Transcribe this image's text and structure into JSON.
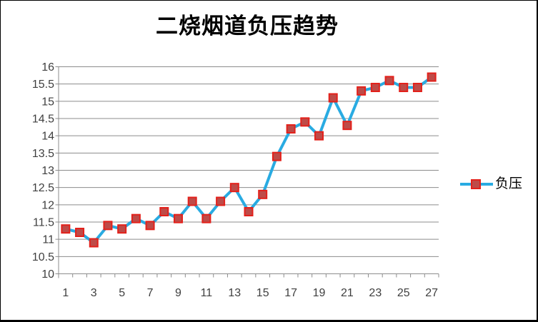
{
  "window": {
    "background": "#FFFFFF",
    "border_color": "#000000"
  },
  "chart_data": {
    "type": "line",
    "title": "二烧烟道负压趋势",
    "categories": [
      "1",
      "2",
      "3",
      "4",
      "5",
      "6",
      "7",
      "8",
      "9",
      "10",
      "11",
      "12",
      "13",
      "14",
      "15",
      "16",
      "17",
      "18",
      "19",
      "20",
      "21",
      "22",
      "23",
      "24",
      "25",
      "26",
      "27"
    ],
    "x_tick_labels_shown": [
      "1",
      "3",
      "5",
      "7",
      "9",
      "11",
      "13",
      "15",
      "17",
      "19",
      "21",
      "23",
      "25",
      "27"
    ],
    "series": [
      {
        "name": "负压",
        "values": [
          11.3,
          11.2,
          10.9,
          11.4,
          11.3,
          11.6,
          11.4,
          11.8,
          11.6,
          12.1,
          11.6,
          12.1,
          12.5,
          11.8,
          12.3,
          13.4,
          14.2,
          14.4,
          14.0,
          15.1,
          14.3,
          15.3,
          15.4,
          15.6,
          15.4,
          15.4,
          15.7
        ]
      }
    ],
    "xlabel": "",
    "ylabel": "",
    "ylim": [
      10,
      16
    ],
    "y_tick_step": 0.5,
    "y_tick_labels": [
      "10",
      "10.5",
      "11",
      "11.5",
      "12",
      "12.5",
      "13",
      "13.5",
      "14",
      "14.5",
      "15",
      "15.5",
      "16"
    ],
    "grid": true,
    "legend_position": "right",
    "colors": {
      "line": "#29ABE2",
      "marker_fill": "#BE4B48",
      "marker_border": "#E3211B",
      "gridline": "#8C8C8C",
      "axis_line": "#8C8C8C",
      "axis_text": "#3F3F3F",
      "title_text": "#000000"
    }
  },
  "legend": {
    "series_label": "负压"
  }
}
